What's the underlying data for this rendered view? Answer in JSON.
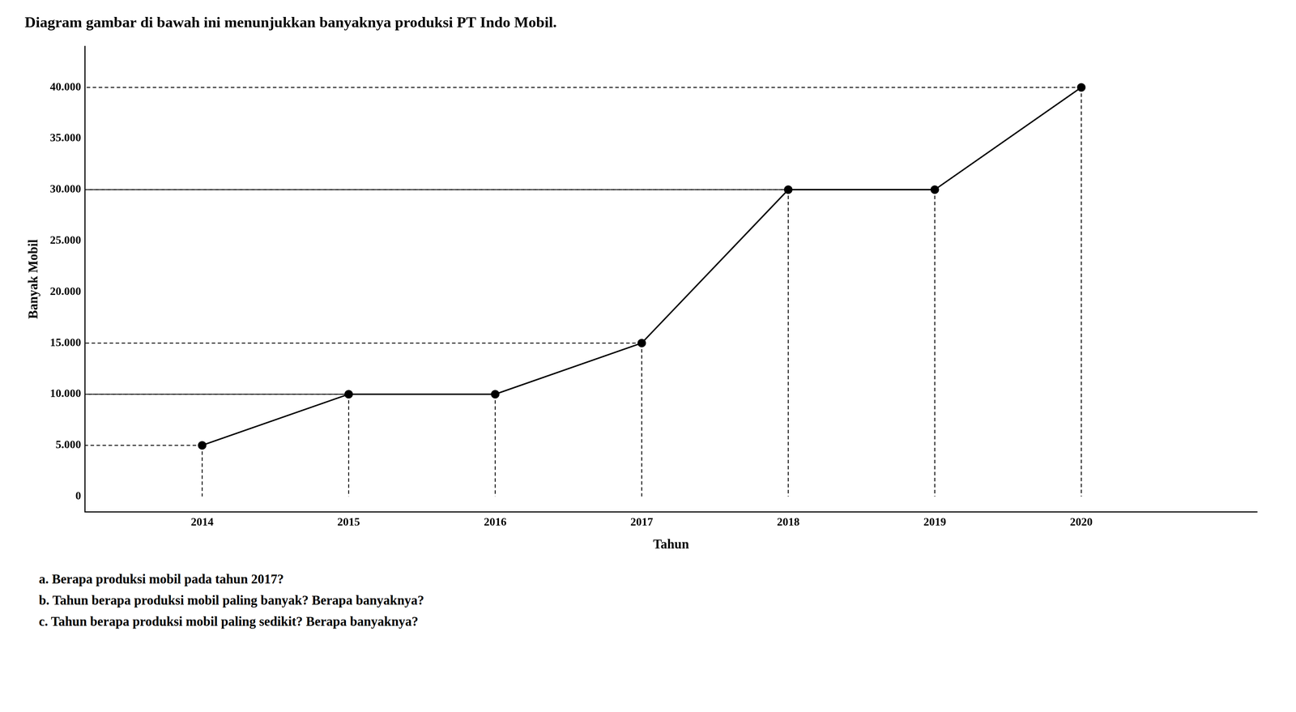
{
  "chart_data": {
    "type": "line",
    "title": "Diagram gambar di bawah ini menunjukkan banyaknya produksi PT Indo Mobil.",
    "xlabel": "Tahun",
    "ylabel": "Banyak Mobil",
    "x": [
      2014,
      2015,
      2016,
      2017,
      2018,
      2019,
      2020
    ],
    "values": [
      5000,
      10000,
      10000,
      15000,
      30000,
      30000,
      40000
    ],
    "color": "#000000",
    "marker": "circle",
    "xlim": [
      2013.2,
      2021.2
    ],
    "xticks": [
      2014,
      2015,
      2016,
      2017,
      2018,
      2019,
      2020
    ],
    "ylim": [
      -1500,
      44000
    ],
    "yticks": [
      0,
      {
        "value": 5000,
        "label": "5.000"
      },
      {
        "value": 10000,
        "label": "10.000"
      },
      {
        "value": 15000,
        "label": "15.000"
      },
      {
        "value": 20000,
        "label": "20.000"
      },
      {
        "value": 25000,
        "label": "25.000"
      },
      {
        "value": 30000,
        "label": "30.000"
      },
      {
        "value": 35000,
        "label": "35.000"
      },
      {
        "value": 40000,
        "label": "40.000"
      }
    ],
    "grid": false,
    "annotations": [
      "a.   Berapa produksi mobil pada tahun 2017?",
      "b.   Tahun berapa produksi mobil paling banyak? Berapa banyaknya?",
      "c.   Tahun berapa produksi mobil paling sedikit? Berapa banyaknya?"
    ]
  }
}
